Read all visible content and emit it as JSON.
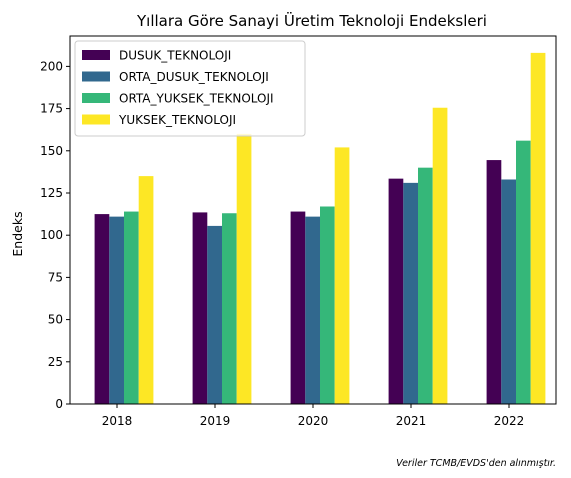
{
  "chart_data": {
    "type": "bar",
    "title": "Yıllara Göre Sanayi Üretim Teknoloji Endeksleri",
    "xlabel": "",
    "ylabel": "Endeks",
    "categories": [
      "2018",
      "2019",
      "2020",
      "2021",
      "2022"
    ],
    "ylim": [
      0,
      218
    ],
    "yticks": [
      0,
      25,
      50,
      75,
      100,
      125,
      150,
      175,
      200
    ],
    "grid": false,
    "legend_position": "top-left",
    "series": [
      {
        "name": "DUSUK_TEKNOLOJI",
        "color": "#440154",
        "values": [
          112.5,
          113.5,
          114.0,
          133.5,
          144.5
        ]
      },
      {
        "name": "ORTA_DUSUK_TEKNOLOJI",
        "color": "#31688e",
        "values": [
          111.0,
          105.5,
          111.0,
          131.0,
          133.0
        ]
      },
      {
        "name": "ORTA_YUKSEK_TEKNOLOJI",
        "color": "#35b779",
        "values": [
          114.0,
          113.0,
          117.0,
          140.0,
          156.0
        ]
      },
      {
        "name": "YUKSEK_TEKNOLOJI",
        "color": "#fde725",
        "values": [
          135.0,
          160.0,
          152.0,
          175.5,
          208.0
        ]
      }
    ],
    "footnote": "Veriler TCMB/EVDS'den alınmıştır."
  }
}
